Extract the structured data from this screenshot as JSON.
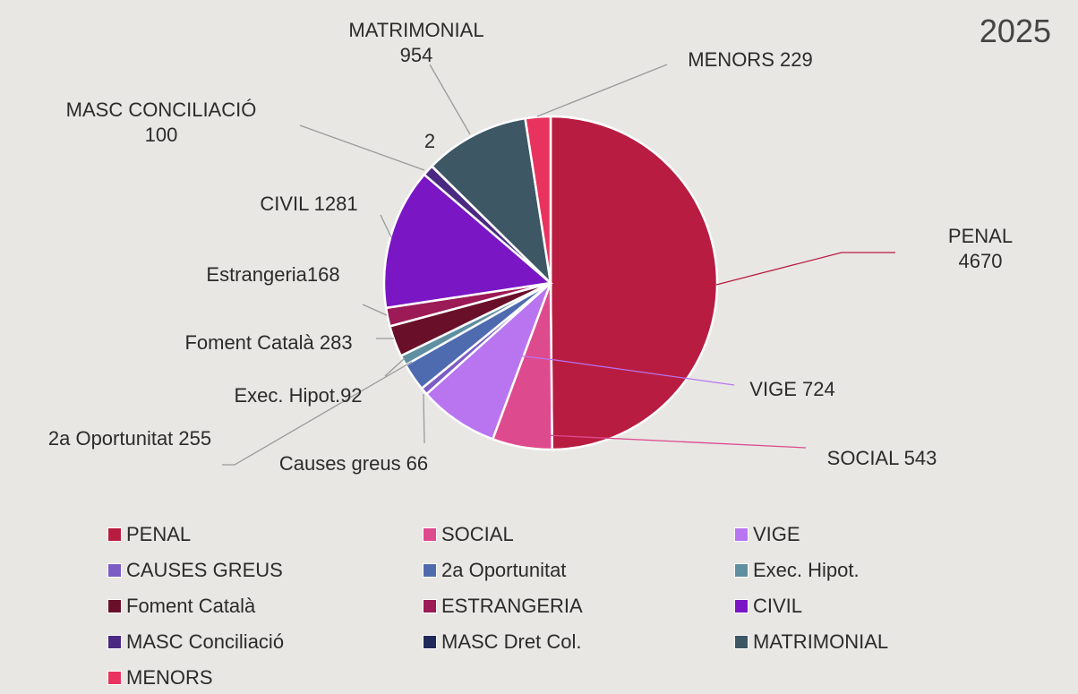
{
  "chart_data": {
    "type": "pie",
    "title": "2025",
    "categories": [
      "PENAL",
      "SOCIAL",
      "VIGE",
      "CAUSES GREUS",
      "2a Oportunitat",
      "Exec. Hipot.",
      "Foment Català",
      "ESTRANGERIA",
      "CIVIL",
      "MASC Conciliació",
      "MASC Dret Col.",
      "MATRIMONIAL",
      "MENORS"
    ],
    "values": [
      4670,
      543,
      724,
      66,
      255,
      92,
      283,
      168,
      1281,
      100,
      2,
      954,
      229
    ],
    "value_labels": [
      "PENAL 4670",
      "SOCIAL 543",
      "VIGE 724",
      "Causes greus 66",
      "2a Oportunitat 255",
      "Exec. Hipot.92",
      "Foment Català 283",
      "Estrangeria168",
      "CIVIL 1281",
      "MASC CONCILIACIÓ\n100",
      "2",
      "MATRIMONIAL\n954",
      "MENORS 229"
    ],
    "colors": [
      "#b91c41",
      "#de4a8e",
      "#b975f0",
      "#7b5cc4",
      "#4f6bb0",
      "#5f8fa0",
      "#6a0f2a",
      "#9c1a55",
      "#7a16c4",
      "#4a2a80",
      "#1f2a5a",
      "#3d5765",
      "#e8335f"
    ],
    "legend": "bottom"
  }
}
